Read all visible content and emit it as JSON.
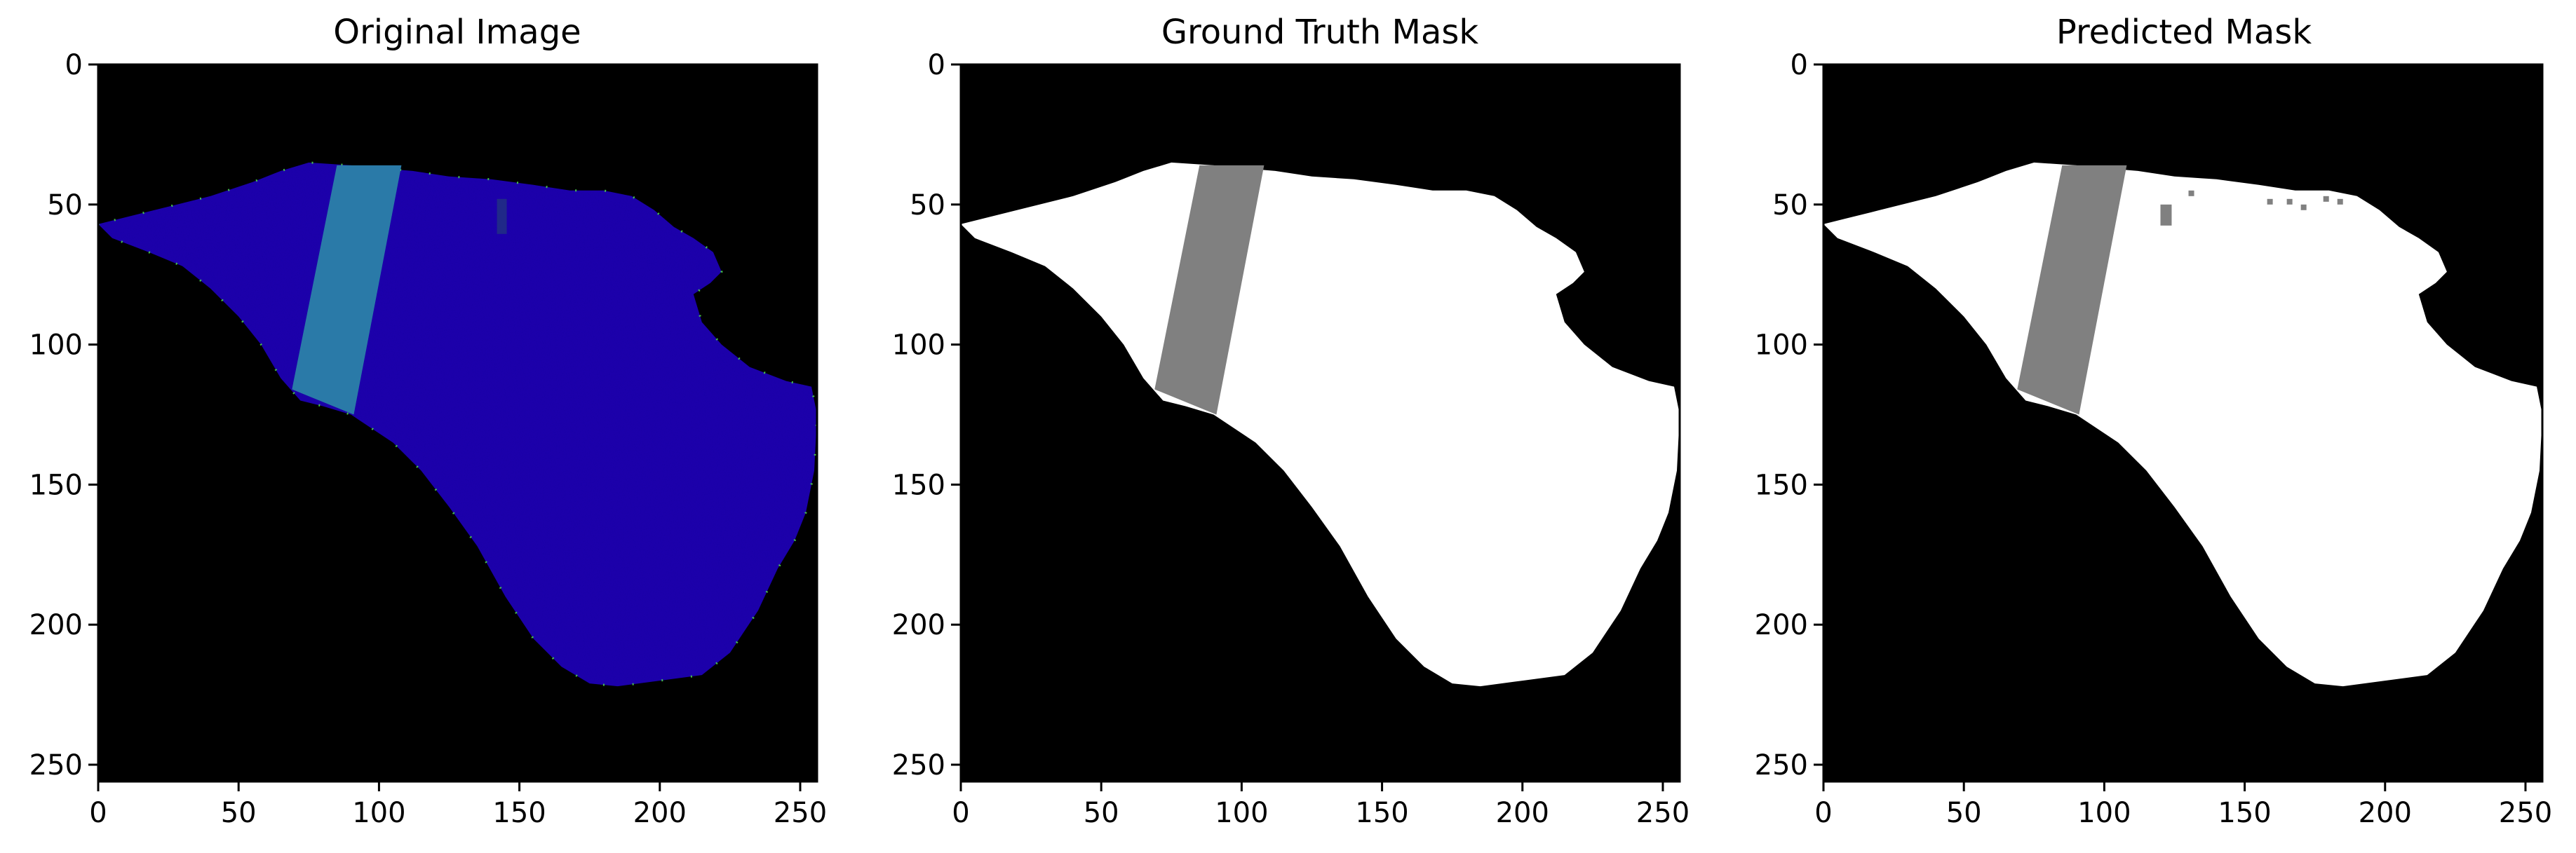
{
  "figure": {
    "panels": [
      {
        "title": "Original Image",
        "kind": "rgb"
      },
      {
        "title": "Ground Truth Mask",
        "kind": "mask-gt"
      },
      {
        "title": "Predicted Mask",
        "kind": "mask-pred"
      }
    ],
    "axes": {
      "x_ticks": [
        0,
        50,
        100,
        150,
        200,
        250
      ],
      "y_ticks": [
        0,
        50,
        100,
        150,
        200,
        250
      ],
      "x_range": [
        0,
        256
      ],
      "y_range": [
        0,
        256
      ]
    },
    "colors": {
      "background": "#000000",
      "region_rgb": "#2010b0",
      "stripe_rgb": "#2a7aa8",
      "edge_speckle": "#4cd24c",
      "region_mask": "#ffffff",
      "stripe_mask": "#808080"
    }
  }
}
